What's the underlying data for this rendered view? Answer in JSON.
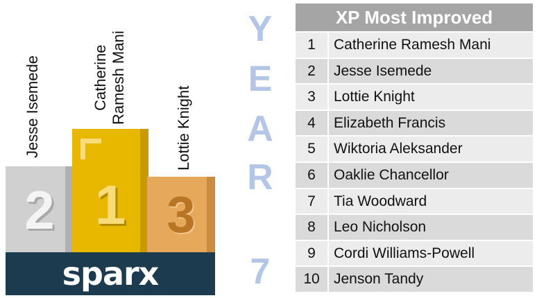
{
  "podium": {
    "first": {
      "place": "1",
      "name": "Catherine\nRamesh Mani",
      "color": "#e8b800",
      "shade": "#c99a00"
    },
    "second": {
      "place": "2",
      "name": "Jesse Isemede",
      "color": "#d0d0d0",
      "shade": "#b0b0b0"
    },
    "third": {
      "place": "3",
      "name": "Lottie Knight",
      "color": "#e6a85a",
      "shade": "#c98c42"
    },
    "brand": "sparx"
  },
  "year": {
    "letters": [
      "Y",
      "E",
      "A",
      "R"
    ],
    "number": "7",
    "color": "#b4c6e7"
  },
  "table": {
    "title": "XP Most Improved",
    "rows": [
      {
        "rank": "1",
        "name": "Catherine Ramesh Mani"
      },
      {
        "rank": "2",
        "name": "Jesse Isemede"
      },
      {
        "rank": "3",
        "name": "Lottie Knight"
      },
      {
        "rank": "4",
        "name": "Elizabeth Francis"
      },
      {
        "rank": "5",
        "name": "Wiktoria Aleksander"
      },
      {
        "rank": "6",
        "name": "Oaklie Chancellor"
      },
      {
        "rank": "7",
        "name": "Tia Woodward"
      },
      {
        "rank": "8",
        "name": "Leo Nicholson"
      },
      {
        "rank": "9",
        "name": "Cordi Williams-Powell"
      },
      {
        "rank": "10",
        "name": "Jenson Tandy"
      }
    ]
  }
}
